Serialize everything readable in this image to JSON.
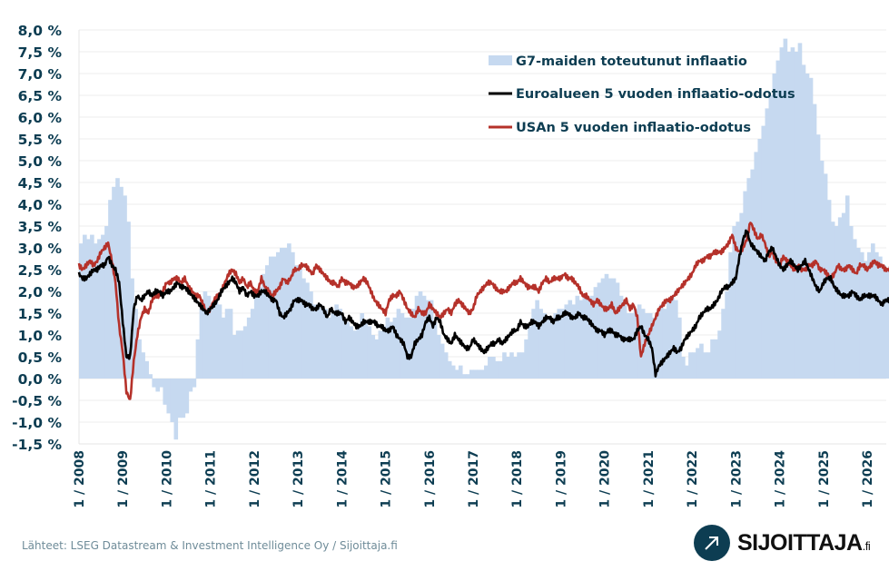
{
  "chart_data": {
    "type": "line",
    "title": "",
    "xlabel": "",
    "ylabel": "",
    "ylim": [
      -1.5,
      8.0
    ],
    "xlim": [
      2008.0,
      2026.5
    ],
    "yticks": [
      8.0,
      7.5,
      7.0,
      6.5,
      6.0,
      5.5,
      5.0,
      4.5,
      4.0,
      3.5,
      3.0,
      2.5,
      2.0,
      1.5,
      1.0,
      0.5,
      0.0,
      -0.5,
      -1.0,
      -1.5
    ],
    "ytick_labels": [
      "8,0 %",
      "7,5 %",
      "7,0 %",
      "6,5 %",
      "6,0 %",
      "5,5 %",
      "5,0 %",
      "4,5 %",
      "4,0 %",
      "3,5 %",
      "3,0 %",
      "2,5 %",
      "2,0 %",
      "1,5 %",
      "1,0 %",
      "0,5 %",
      "0,0 %",
      "-0,5 %",
      "-1,0 %",
      "-1,5 %"
    ],
    "xticks": [
      2008,
      2009,
      2010,
      2011,
      2012,
      2013,
      2014,
      2015,
      2016,
      2017,
      2018,
      2019,
      2020,
      2021,
      2022,
      2023,
      2024,
      2025,
      2026
    ],
    "xtick_labels": [
      "1 / 2008",
      "1 / 2009",
      "1 / 2010",
      "1 / 2011",
      "1 / 2012",
      "1 / 2013",
      "1 / 2014",
      "1 / 2015",
      "1 / 2016",
      "1 / 2017",
      "1 / 2018",
      "1 / 2019",
      "1 / 2020",
      "1 / 2021",
      "1 / 2022",
      "1 / 2023",
      "1 / 2024",
      "1 / 2025",
      "1 / 2026"
    ],
    "grid": true,
    "legend_position": "top-right",
    "series": [
      {
        "name": "G7-maiden toteutunut inflaatio",
        "kind": "area-step",
        "color": "#c6d9f0",
        "start": 2008.0,
        "step": 0.0833333,
        "values": [
          3.1,
          3.3,
          3.2,
          3.3,
          3.1,
          3.2,
          3.3,
          3.5,
          4.1,
          4.4,
          4.6,
          4.4,
          4.2,
          3.6,
          2.3,
          1.6,
          0.9,
          0.6,
          0.4,
          0.1,
          -0.2,
          -0.3,
          -0.2,
          -0.6,
          -0.8,
          -1.0,
          -1.4,
          -0.9,
          -0.9,
          -0.8,
          -0.3,
          -0.2,
          0.9,
          1.6,
          2.0,
          1.9,
          1.7,
          1.8,
          1.7,
          1.4,
          1.6,
          1.6,
          1.0,
          1.1,
          1.1,
          1.2,
          1.4,
          1.6,
          2.0,
          2.1,
          2.4,
          2.6,
          2.8,
          2.8,
          2.9,
          3.0,
          3.0,
          3.1,
          2.9,
          2.6,
          2.5,
          2.3,
          2.2,
          2.0,
          1.7,
          1.7,
          1.6,
          1.6,
          1.4,
          1.5,
          1.7,
          1.6,
          1.4,
          1.3,
          1.2,
          1.1,
          1.2,
          1.5,
          1.3,
          1.2,
          1.0,
          0.9,
          1.1,
          1.2,
          1.4,
          1.3,
          1.4,
          1.6,
          1.5,
          1.4,
          1.4,
          1.6,
          1.9,
          2.0,
          1.9,
          1.8,
          1.8,
          1.3,
          1.0,
          0.8,
          0.6,
          0.4,
          0.3,
          0.2,
          0.3,
          0.1,
          0.1,
          0.2,
          0.2,
          0.2,
          0.2,
          0.3,
          0.5,
          0.5,
          0.4,
          0.4,
          0.6,
          0.5,
          0.6,
          0.5,
          0.6,
          0.6,
          0.9,
          1.2,
          1.6,
          1.8,
          1.6,
          1.5,
          1.4,
          1.3,
          1.5,
          1.6,
          1.6,
          1.7,
          1.8,
          1.7,
          1.9,
          1.8,
          1.9,
          1.8,
          1.9,
          2.1,
          2.2,
          2.3,
          2.4,
          2.3,
          2.3,
          2.2,
          1.9,
          1.7,
          1.5,
          1.5,
          1.6,
          1.7,
          1.6,
          1.5,
          1.5,
          1.4,
          1.5,
          1.7,
          1.6,
          1.8,
          1.9,
          1.8,
          1.4,
          0.5,
          0.3,
          0.6,
          0.6,
          0.7,
          0.8,
          0.6,
          0.6,
          0.9,
          0.9,
          1.1,
          1.6,
          2.0,
          2.9,
          3.5,
          3.6,
          3.8,
          4.3,
          4.6,
          4.8,
          5.2,
          5.5,
          5.8,
          6.2,
          6.5,
          7.0,
          7.3,
          7.6,
          7.8,
          7.5,
          7.6,
          7.5,
          7.7,
          7.2,
          7.0,
          6.9,
          6.3,
          5.6,
          5.0,
          4.7,
          4.1,
          3.6,
          3.5,
          3.7,
          3.8,
          4.2,
          3.5,
          3.2,
          3.0,
          2.9,
          2.7,
          2.9,
          3.1,
          2.9,
          2.8,
          2.6,
          2.5,
          2.6,
          2.8,
          2.7,
          2.6,
          2.5,
          2.4,
          2.4,
          2.5,
          2.6,
          2.5,
          2.4,
          2.6,
          2.7,
          2.6,
          2.4,
          2.5,
          2.4,
          2.5,
          2.5
        ]
      },
      {
        "name": "Euroalueen 5 vuoden inflaatio-odotus",
        "kind": "line",
        "color": "#000000",
        "start": 2008.0,
        "step": 0.0833333,
        "values": [
          2.4,
          2.3,
          2.3,
          2.4,
          2.5,
          2.5,
          2.6,
          2.6,
          2.8,
          2.6,
          2.5,
          2.2,
          1.3,
          0.5,
          0.5,
          1.6,
          1.9,
          1.8,
          1.9,
          2.0,
          1.9,
          2.0,
          2.0,
          1.9,
          2.0,
          2.0,
          2.1,
          2.2,
          2.1,
          2.1,
          2.0,
          1.9,
          1.8,
          1.7,
          1.6,
          1.5,
          1.6,
          1.7,
          1.8,
          2.0,
          2.1,
          2.2,
          2.3,
          2.2,
          2.0,
          2.1,
          1.9,
          2.0,
          1.9,
          1.9,
          2.0,
          2.0,
          1.9,
          1.8,
          1.8,
          1.5,
          1.4,
          1.5,
          1.6,
          1.8,
          1.8,
          1.8,
          1.7,
          1.7,
          1.6,
          1.6,
          1.7,
          1.6,
          1.4,
          1.6,
          1.5,
          1.5,
          1.5,
          1.3,
          1.4,
          1.3,
          1.2,
          1.2,
          1.3,
          1.3,
          1.3,
          1.3,
          1.2,
          1.2,
          1.1,
          1.1,
          1.2,
          1.0,
          0.9,
          0.8,
          0.5,
          0.5,
          0.8,
          0.9,
          1.0,
          1.3,
          1.4,
          1.2,
          1.4,
          1.3,
          1.0,
          0.9,
          0.8,
          1.0,
          0.9,
          0.8,
          0.7,
          0.7,
          0.9,
          0.8,
          0.7,
          0.6,
          0.7,
          0.8,
          0.8,
          0.9,
          0.8,
          0.9,
          1.0,
          1.1,
          1.1,
          1.3,
          1.2,
          1.2,
          1.3,
          1.3,
          1.2,
          1.3,
          1.4,
          1.4,
          1.3,
          1.4,
          1.4,
          1.5,
          1.5,
          1.4,
          1.4,
          1.5,
          1.4,
          1.4,
          1.3,
          1.2,
          1.1,
          1.1,
          1.0,
          1.1,
          1.1,
          1.0,
          1.0,
          0.9,
          0.9,
          0.9,
          0.9,
          1.1,
          1.2,
          1.0,
          0.9,
          0.7,
          0.1,
          0.3,
          0.4,
          0.5,
          0.6,
          0.7,
          0.6,
          0.7,
          0.9,
          1.0,
          1.1,
          1.2,
          1.4,
          1.5,
          1.6,
          1.6,
          1.7,
          1.8,
          2.0,
          2.1,
          2.1,
          2.2,
          2.3,
          2.8,
          3.2,
          3.4,
          3.1,
          3.0,
          2.9,
          2.8,
          2.7,
          2.9,
          3.0,
          2.8,
          2.6,
          2.5,
          2.6,
          2.7,
          2.6,
          2.5,
          2.6,
          2.7,
          2.5,
          2.3,
          2.1,
          2.0,
          2.2,
          2.3,
          2.3,
          2.1,
          2.0,
          1.9,
          1.9,
          1.9,
          2.0,
          1.9,
          1.8,
          1.9,
          1.9,
          1.9,
          1.9,
          1.8,
          1.7,
          1.8,
          1.8,
          1.8,
          1.9,
          1.8,
          1.8,
          1.8,
          1.8,
          1.9,
          2.2,
          2.4,
          2.5
        ]
      },
      {
        "name": "USAn 5 vuoden inflaatio-odotus",
        "kind": "line",
        "color": "#b5312a",
        "start": 2008.0,
        "step": 0.0833333,
        "values": [
          2.6,
          2.5,
          2.6,
          2.7,
          2.6,
          2.7,
          2.9,
          3.0,
          3.1,
          2.7,
          2.2,
          1.2,
          0.6,
          -0.3,
          -0.5,
          0.4,
          1.0,
          1.4,
          1.6,
          1.5,
          1.8,
          1.9,
          1.9,
          2.0,
          2.2,
          2.2,
          2.3,
          2.3,
          2.2,
          2.3,
          2.1,
          2.0,
          1.9,
          1.9,
          1.7,
          1.5,
          1.6,
          1.8,
          1.9,
          2.0,
          2.2,
          2.4,
          2.5,
          2.4,
          2.2,
          2.3,
          2.1,
          2.2,
          2.0,
          2.0,
          2.3,
          2.1,
          2.0,
          1.9,
          2.0,
          2.1,
          2.3,
          2.2,
          2.3,
          2.5,
          2.5,
          2.6,
          2.6,
          2.5,
          2.4,
          2.6,
          2.5,
          2.4,
          2.3,
          2.2,
          2.2,
          2.1,
          2.3,
          2.2,
          2.2,
          2.1,
          2.1,
          2.2,
          2.3,
          2.2,
          2.0,
          1.8,
          1.7,
          1.6,
          1.5,
          1.8,
          1.9,
          1.9,
          2.0,
          1.8,
          1.6,
          1.5,
          1.4,
          1.6,
          1.5,
          1.5,
          1.7,
          1.6,
          1.5,
          1.4,
          1.5,
          1.6,
          1.5,
          1.7,
          1.8,
          1.7,
          1.6,
          1.5,
          1.6,
          1.9,
          2.0,
          2.1,
          2.2,
          2.2,
          2.1,
          2.0,
          2.0,
          2.0,
          2.1,
          2.2,
          2.2,
          2.3,
          2.2,
          2.1,
          2.1,
          2.1,
          2.0,
          2.2,
          2.3,
          2.2,
          2.3,
          2.3,
          2.3,
          2.4,
          2.3,
          2.3,
          2.2,
          2.1,
          1.9,
          1.9,
          1.8,
          1.7,
          1.8,
          1.7,
          1.6,
          1.6,
          1.7,
          1.5,
          1.6,
          1.7,
          1.8,
          1.6,
          1.7,
          1.4,
          0.5,
          0.8,
          1.0,
          1.2,
          1.4,
          1.6,
          1.7,
          1.8,
          1.8,
          1.9,
          2.0,
          2.1,
          2.2,
          2.3,
          2.4,
          2.6,
          2.7,
          2.7,
          2.8,
          2.8,
          2.9,
          2.9,
          2.9,
          3.0,
          3.1,
          3.3,
          3.0,
          2.9,
          3.0,
          3.2,
          3.6,
          3.4,
          3.2,
          3.3,
          3.1,
          2.8,
          2.9,
          2.7,
          2.6,
          2.8,
          2.7,
          2.6,
          2.5,
          2.6,
          2.5,
          2.5,
          2.6,
          2.6,
          2.7,
          2.5,
          2.5,
          2.4,
          2.3,
          2.4,
          2.6,
          2.5,
          2.5,
          2.6,
          2.5,
          2.4,
          2.6,
          2.6,
          2.5,
          2.6,
          2.7,
          2.6,
          2.6,
          2.5,
          2.5,
          2.6,
          2.7,
          2.6,
          2.5,
          2.6,
          2.5,
          2.4,
          2.5,
          2.6,
          2.6,
          2.5,
          2.6,
          2.6,
          2.7
        ]
      }
    ]
  },
  "legend": {
    "items": [
      {
        "label": "G7-maiden toteutunut inflaatio",
        "swatch": "area"
      },
      {
        "label": "Euroalueen 5 vuoden inflaatio-odotus",
        "swatch": "line"
      },
      {
        "label": "USAn 5 vuoden inflaatio-odotus",
        "swatch": "line"
      }
    ]
  },
  "footer": {
    "source": "Lähteet: LSEG Datastream & Investment Intelligence Oy  / Sijoittaja.fi"
  },
  "logo": {
    "name": "SIJOITTAJA",
    "suffix": ".fi",
    "icon": "arrow-up-right-icon"
  }
}
